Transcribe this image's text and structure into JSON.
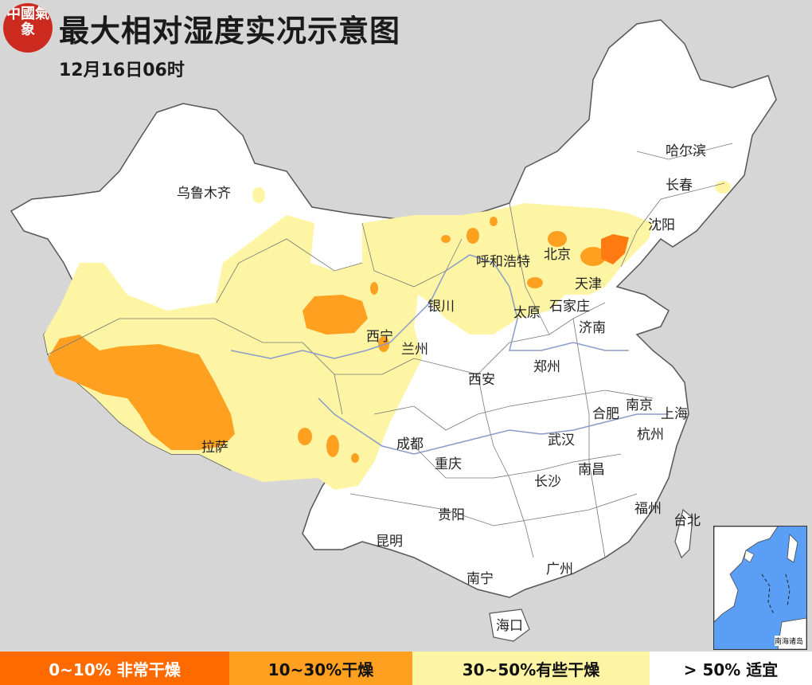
{
  "header": {
    "title": "最大相对湿度实况示意图",
    "subtitle": "12月16日06时",
    "logo_text": "中國氣象"
  },
  "cities": [
    {
      "id": "wulumuqi",
      "name": "乌鲁木齐"
    },
    {
      "id": "haerbin",
      "name": "哈尔滨"
    },
    {
      "id": "changchun",
      "name": "长春"
    },
    {
      "id": "shenyang",
      "name": "沈阳"
    },
    {
      "id": "huhehaote",
      "name": "呼和浩特"
    },
    {
      "id": "beijing",
      "name": "北京"
    },
    {
      "id": "tianjin",
      "name": "天津"
    },
    {
      "id": "yinchuan",
      "name": "银川"
    },
    {
      "id": "taiyuan",
      "name": "太原"
    },
    {
      "id": "shijiazhuang",
      "name": "石家庄"
    },
    {
      "id": "jinan",
      "name": "济南"
    },
    {
      "id": "xining",
      "name": "西宁"
    },
    {
      "id": "lanzhou",
      "name": "兰州"
    },
    {
      "id": "zhengzhou",
      "name": "郑州"
    },
    {
      "id": "xian",
      "name": "西安"
    },
    {
      "id": "nanjing",
      "name": "南京"
    },
    {
      "id": "shanghai",
      "name": "上海"
    },
    {
      "id": "hefei",
      "name": "合肥"
    },
    {
      "id": "hangzhou",
      "name": "杭州"
    },
    {
      "id": "wuhan",
      "name": "武汉"
    },
    {
      "id": "chengdu",
      "name": "成都"
    },
    {
      "id": "chongqing",
      "name": "重庆"
    },
    {
      "id": "lasa",
      "name": "拉萨"
    },
    {
      "id": "nanchang",
      "name": "南昌"
    },
    {
      "id": "changsha",
      "name": "长沙"
    },
    {
      "id": "fuzhou",
      "name": "福州"
    },
    {
      "id": "taibei",
      "name": "台北"
    },
    {
      "id": "guiyang",
      "name": "贵阳"
    },
    {
      "id": "kunming",
      "name": "昆明"
    },
    {
      "id": "guangzhou",
      "name": "广州"
    },
    {
      "id": "nanning",
      "name": "南宁"
    },
    {
      "id": "haikou",
      "name": "海口"
    }
  ],
  "inset": {
    "label": "南海诸岛"
  },
  "legend": [
    {
      "label": "0~10% 非常干燥",
      "color": "#ff6a00"
    },
    {
      "label": "10~30%干燥",
      "color": "#ffa020"
    },
    {
      "label": "30~50%有些干燥",
      "color": "#fdf5a4"
    },
    {
      "label": "> 50% 适宜",
      "color": "#ffffff"
    }
  ],
  "colors": {
    "background": "#d6d6d6",
    "very_dry": "#ff6a00",
    "dry": "#ffa020",
    "somewhat_dry": "#fdf5a4",
    "suitable": "#ffffff",
    "river": "#8a9bc8",
    "sea": "#5b9ef5",
    "logo_red": "#cc2a1e"
  }
}
